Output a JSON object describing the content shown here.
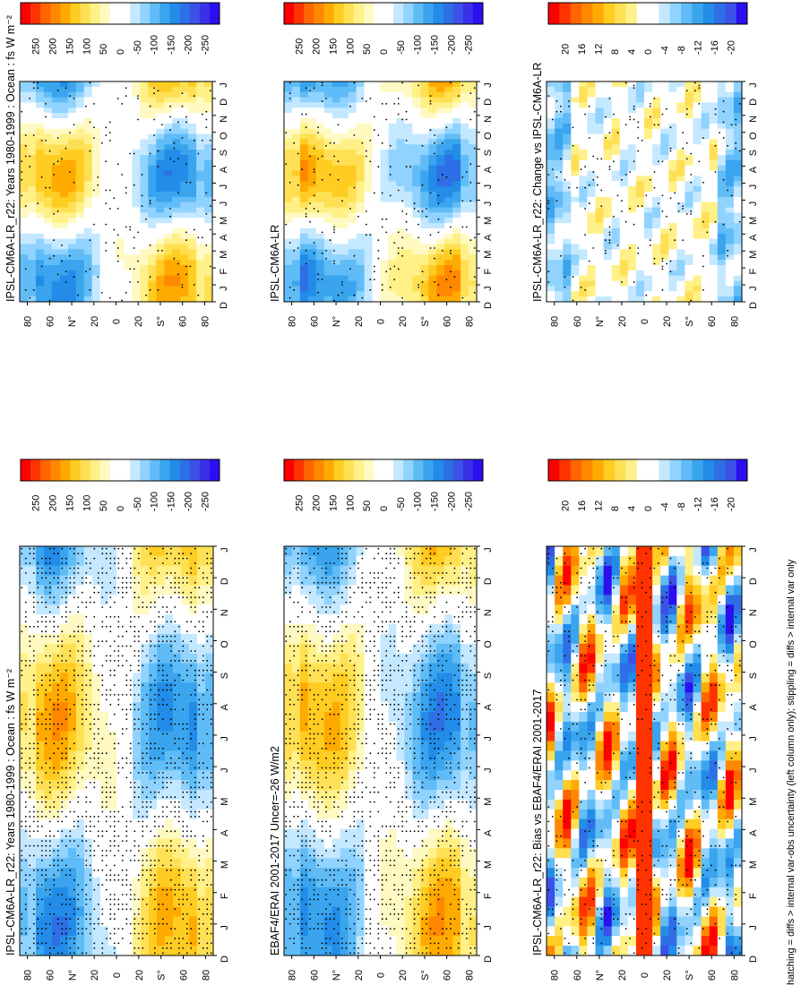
{
  "footnote": "hatching = diffs > internal var-obs uncertainty (left column only); stippling = diffs > internal var only",
  "month_labels": [
    "D",
    "J",
    "F",
    "M",
    "A",
    "M",
    "J",
    "J",
    "A",
    "S",
    "O",
    "N",
    "D",
    "J"
  ],
  "lat_labels": [
    "80",
    "60",
    "N°",
    "20",
    "0",
    "20",
    "S°",
    "60",
    "80"
  ],
  "colors": {
    "main": [
      "#ff0000",
      "#ff3300",
      "#ff6600",
      "#ff8800",
      "#ffaa00",
      "#ffcc22",
      "#ffe055",
      "#fff088",
      "#fff9c2",
      "#ffffff",
      "#ffffff",
      "#c4e8ff",
      "#90d3ff",
      "#60bcf6",
      "#3aa5ee",
      "#228ce8",
      "#2f6fe6",
      "#3b52e8",
      "#3a30ea",
      "#2a10ee"
    ],
    "diff": [
      "#ff0000",
      "#ff3300",
      "#ff6600",
      "#ff8800",
      "#ffaa00",
      "#ffcc22",
      "#ffe055",
      "#fff088",
      "#ffffff",
      "#ffffff",
      "#c4e8ff",
      "#90d3ff",
      "#60bcf6",
      "#3aa5ee",
      "#228ce8",
      "#2f6fe6",
      "#3b52e8",
      "#2a10ee"
    ]
  },
  "colorbars": [
    {
      "id": "cb1",
      "palette": "main",
      "labels": [
        "250",
        "200",
        "150",
        "100",
        "50",
        "0",
        "-50",
        "-100",
        "-150",
        "-200",
        "-250"
      ]
    },
    {
      "id": "cb2",
      "palette": "main",
      "labels": [
        "250",
        "200",
        "150",
        "100",
        "50",
        "0",
        "-50",
        "-100",
        "-150",
        "-200",
        "-250"
      ]
    },
    {
      "id": "cb3",
      "palette": "diff",
      "labels": [
        "20",
        "16",
        "12",
        "8",
        "4",
        "0",
        "-4",
        "-8",
        "-12",
        "-16",
        "-20"
      ]
    },
    {
      "id": "cb4",
      "palette": "main",
      "labels": [
        "250",
        "200",
        "150",
        "100",
        "50",
        "0",
        "-50",
        "-100",
        "-150",
        "-200",
        "-250"
      ]
    },
    {
      "id": "cb5",
      "palette": "main",
      "labels": [
        "250",
        "200",
        "150",
        "100",
        "50",
        "0",
        "-50",
        "-100",
        "-150",
        "-200",
        "-250"
      ]
    },
    {
      "id": "cb6",
      "palette": "diff",
      "labels": [
        "20",
        "16",
        "12",
        "8",
        "4",
        "0",
        "-4",
        "-8",
        "-12",
        "-16",
        "-20"
      ]
    }
  ],
  "chart_data": [
    {
      "type": "heatmap",
      "id": "p1",
      "title": "IPSL-CM6A-LR_r22: Years 1980-1999 : Ocean : fs W m⁻²",
      "kind": "model",
      "hatching": "dense",
      "colorbar": "cb1"
    },
    {
      "type": "heatmap",
      "id": "p2",
      "title": "EBAF4/ERAI 2001-2017 Uncer=-26 W/m2",
      "kind": "obs",
      "hatching": "dense",
      "colorbar": "cb2"
    },
    {
      "type": "heatmap",
      "id": "p3",
      "title": "IPSL-CM6A-LR_r22: Bias vs EBAF4/ERAI 2001-2017",
      "kind": "bias",
      "hatching": "medium",
      "colorbar": "cb3"
    },
    {
      "type": "heatmap",
      "id": "p4",
      "title": "IPSL-CM6A-LR_r22: Years 1980-1999 : Ocean : fs W m⁻²",
      "kind": "model",
      "hatching": "sparse",
      "colorbar": "cb4"
    },
    {
      "type": "heatmap",
      "id": "p5",
      "title": "IPSL-CM6A-LR",
      "kind": "model",
      "hatching": "sparse",
      "colorbar": "cb5"
    },
    {
      "type": "heatmap",
      "id": "p6",
      "title": "IPSL-CM6A-LR_r22: Change vs IPSL-CM6A-LR",
      "kind": "change",
      "hatching": "sparse",
      "colorbar": "cb6"
    }
  ]
}
